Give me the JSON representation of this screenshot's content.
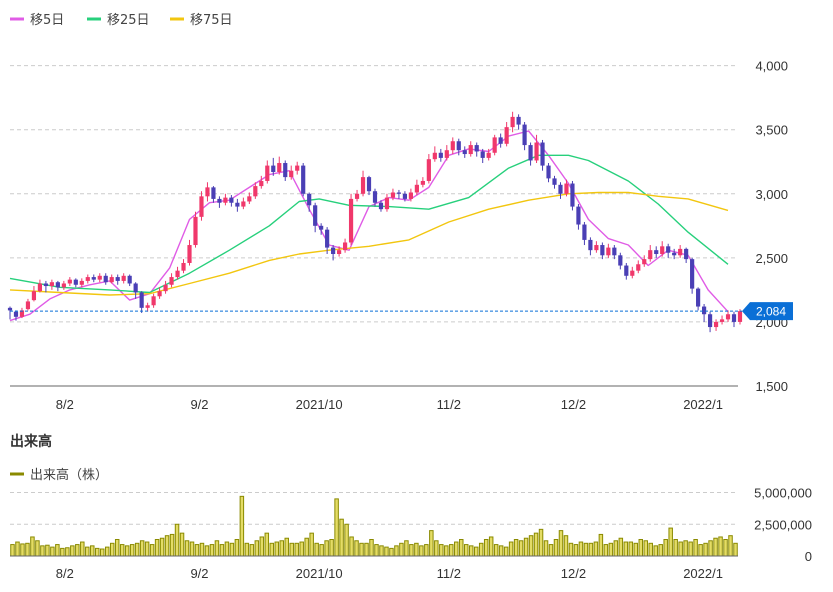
{
  "legend": {
    "ma5_label": "移5日",
    "ma25_label": "移25日",
    "ma75_label": "移75日",
    "volume_label": "出来高（株）"
  },
  "volume_section_title": "出来高",
  "colors": {
    "ma5": "#e05ce6",
    "ma25": "#27d07c",
    "ma75": "#f2c60f",
    "up": "#f0386b",
    "down": "#4a3fb5",
    "volume_fill": "#e4dc66",
    "volume_stroke": "#8a8a00",
    "price_tag": "#0a6fd6",
    "grid": "#cccccc",
    "axis": "#666666"
  },
  "chart_data": {
    "type": "candlestick",
    "price_axis": {
      "ylim": [
        1500,
        4200
      ],
      "ticks": [
        {
          "value": 4000,
          "label": "4,000"
        },
        {
          "value": 3500,
          "label": "3,500"
        },
        {
          "value": 3000,
          "label": "3,000"
        },
        {
          "value": 2500,
          "label": "2,500"
        },
        {
          "value": 2000,
          "label": "2,000"
        },
        {
          "value": 1500,
          "label": "1,500"
        }
      ]
    },
    "x_axis": {
      "range": [
        0,
        146
      ],
      "ticks": [
        {
          "value": 11,
          "label": "8/2"
        },
        {
          "value": 38,
          "label": "9/2"
        },
        {
          "value": 62,
          "label": "2021/10"
        },
        {
          "value": 88,
          "label": "11/2"
        },
        {
          "value": 113,
          "label": "12/2"
        },
        {
          "value": 139,
          "label": "2022/1"
        }
      ]
    },
    "current_price": {
      "value": 2084,
      "label": "2,084"
    },
    "series": [
      {
        "name": "移5日",
        "type": "line",
        "color_key": "ma5",
        "points": [
          [
            0,
            2010
          ],
          [
            4,
            2060
          ],
          [
            8,
            2180
          ],
          [
            12,
            2250
          ],
          [
            16,
            2290
          ],
          [
            20,
            2320
          ],
          [
            24,
            2170
          ],
          [
            28,
            2220
          ],
          [
            32,
            2420
          ],
          [
            36,
            2800
          ],
          [
            40,
            2930
          ],
          [
            44,
            2950
          ],
          [
            48,
            3050
          ],
          [
            52,
            3150
          ],
          [
            56,
            3180
          ],
          [
            60,
            2880
          ],
          [
            64,
            2600
          ],
          [
            68,
            2560
          ],
          [
            72,
            2900
          ],
          [
            76,
            2970
          ],
          [
            80,
            2950
          ],
          [
            84,
            3050
          ],
          [
            88,
            3300
          ],
          [
            92,
            3350
          ],
          [
            96,
            3330
          ],
          [
            100,
            3450
          ],
          [
            104,
            3490
          ],
          [
            108,
            3300
          ],
          [
            112,
            3080
          ],
          [
            116,
            2800
          ],
          [
            120,
            2650
          ],
          [
            124,
            2600
          ],
          [
            128,
            2440
          ],
          [
            132,
            2560
          ],
          [
            136,
            2520
          ],
          [
            140,
            2250
          ],
          [
            144,
            2080
          ]
        ]
      },
      {
        "name": "移25日",
        "type": "line",
        "color_key": "ma25",
        "points": [
          [
            0,
            2340
          ],
          [
            10,
            2270
          ],
          [
            20,
            2250
          ],
          [
            28,
            2230
          ],
          [
            36,
            2380
          ],
          [
            44,
            2560
          ],
          [
            52,
            2750
          ],
          [
            58,
            2940
          ],
          [
            62,
            2960
          ],
          [
            68,
            2910
          ],
          [
            76,
            2900
          ],
          [
            84,
            2880
          ],
          [
            92,
            2970
          ],
          [
            100,
            3200
          ],
          [
            106,
            3300
          ],
          [
            112,
            3300
          ],
          [
            116,
            3260
          ],
          [
            124,
            3100
          ],
          [
            130,
            2920
          ],
          [
            136,
            2700
          ],
          [
            144,
            2450
          ]
        ]
      },
      {
        "name": "移75日",
        "type": "line",
        "color_key": "ma75",
        "points": [
          [
            0,
            2250
          ],
          [
            10,
            2230
          ],
          [
            20,
            2210
          ],
          [
            28,
            2220
          ],
          [
            36,
            2300
          ],
          [
            44,
            2380
          ],
          [
            52,
            2480
          ],
          [
            58,
            2530
          ],
          [
            64,
            2560
          ],
          [
            72,
            2590
          ],
          [
            80,
            2640
          ],
          [
            88,
            2780
          ],
          [
            96,
            2880
          ],
          [
            104,
            2950
          ],
          [
            112,
            3000
          ],
          [
            118,
            3010
          ],
          [
            124,
            3010
          ],
          [
            130,
            2980
          ],
          [
            136,
            2960
          ],
          [
            144,
            2870
          ]
        ]
      }
    ],
    "candles": [
      [
        0,
        2110,
        2090,
        2120,
        2020
      ],
      [
        1,
        2080,
        2040,
        2090,
        2010
      ],
      [
        2,
        2040,
        2090,
        2110,
        2030
      ],
      [
        3,
        2100,
        2160,
        2180,
        2090
      ],
      [
        4,
        2170,
        2240,
        2280,
        2160
      ],
      [
        5,
        2240,
        2300,
        2330,
        2230
      ],
      [
        6,
        2300,
        2280,
        2320,
        2230
      ],
      [
        7,
        2280,
        2310,
        2330,
        2250
      ],
      [
        8,
        2310,
        2270,
        2320,
        2240
      ],
      [
        9,
        2270,
        2300,
        2320,
        2250
      ],
      [
        10,
        2300,
        2330,
        2350,
        2280
      ],
      [
        11,
        2330,
        2290,
        2340,
        2270
      ],
      [
        12,
        2290,
        2320,
        2340,
        2270
      ],
      [
        13,
        2320,
        2350,
        2370,
        2300
      ],
      [
        14,
        2350,
        2330,
        2370,
        2310
      ],
      [
        15,
        2330,
        2360,
        2380,
        2310
      ],
      [
        16,
        2360,
        2310,
        2380,
        2290
      ],
      [
        17,
        2310,
        2350,
        2370,
        2300
      ],
      [
        18,
        2350,
        2320,
        2370,
        2290
      ],
      [
        19,
        2320,
        2360,
        2380,
        2300
      ],
      [
        20,
        2360,
        2300,
        2370,
        2280
      ],
      [
        21,
        2300,
        2230,
        2310,
        2180
      ],
      [
        22,
        2230,
        2110,
        2240,
        2070
      ],
      [
        23,
        2110,
        2130,
        2150,
        2080
      ],
      [
        24,
        2130,
        2200,
        2220,
        2110
      ],
      [
        25,
        2200,
        2240,
        2270,
        2180
      ],
      [
        26,
        2240,
        2290,
        2320,
        2220
      ],
      [
        27,
        2290,
        2350,
        2380,
        2270
      ],
      [
        28,
        2350,
        2400,
        2430,
        2330
      ],
      [
        29,
        2400,
        2460,
        2490,
        2380
      ],
      [
        30,
        2460,
        2600,
        2640,
        2440
      ],
      [
        31,
        2600,
        2820,
        2860,
        2580
      ],
      [
        32,
        2820,
        2980,
        3020,
        2790
      ],
      [
        33,
        2980,
        3050,
        3090,
        2940
      ],
      [
        34,
        3050,
        2960,
        3060,
        2930
      ],
      [
        35,
        2960,
        2930,
        2980,
        2890
      ],
      [
        36,
        2930,
        2970,
        3000,
        2910
      ],
      [
        37,
        2970,
        2930,
        2990,
        2900
      ],
      [
        38,
        2930,
        2900,
        2960,
        2860
      ],
      [
        39,
        2900,
        2940,
        2970,
        2880
      ],
      [
        40,
        2940,
        2980,
        3010,
        2920
      ],
      [
        41,
        2980,
        3060,
        3090,
        2960
      ],
      [
        42,
        3060,
        3100,
        3140,
        3040
      ],
      [
        43,
        3100,
        3220,
        3260,
        3080
      ],
      [
        44,
        3220,
        3170,
        3280,
        3140
      ],
      [
        45,
        3170,
        3240,
        3290,
        3150
      ],
      [
        46,
        3240,
        3130,
        3260,
        3100
      ],
      [
        47,
        3130,
        3180,
        3220,
        3110
      ],
      [
        48,
        3180,
        3220,
        3250,
        3150
      ],
      [
        49,
        3220,
        3000,
        3240,
        2980
      ],
      [
        50,
        3000,
        2910,
        3010,
        2860
      ],
      [
        51,
        2910,
        2750,
        2930,
        2700
      ],
      [
        52,
        2750,
        2720,
        2770,
        2680
      ],
      [
        53,
        2720,
        2580,
        2740,
        2530
      ],
      [
        54,
        2580,
        2530,
        2600,
        2480
      ],
      [
        55,
        2530,
        2560,
        2590,
        2510
      ],
      [
        56,
        2560,
        2620,
        2650,
        2540
      ],
      [
        57,
        2620,
        2960,
        3000,
        2600
      ],
      [
        58,
        2960,
        3000,
        3030,
        2940
      ],
      [
        59,
        3000,
        3130,
        3180,
        2980
      ],
      [
        60,
        3130,
        3020,
        3140,
        2990
      ],
      [
        61,
        3020,
        2930,
        3040,
        2900
      ],
      [
        62,
        2930,
        2880,
        2950,
        2860
      ],
      [
        63,
        2880,
        2970,
        3000,
        2860
      ],
      [
        64,
        2970,
        3010,
        3040,
        2950
      ],
      [
        65,
        3010,
        3000,
        3030,
        2960
      ],
      [
        66,
        3000,
        2960,
        3020,
        2940
      ],
      [
        67,
        2960,
        3010,
        3040,
        2940
      ],
      [
        68,
        3010,
        3070,
        3110,
        2990
      ],
      [
        69,
        3070,
        3100,
        3130,
        3050
      ],
      [
        70,
        3100,
        3270,
        3310,
        3080
      ],
      [
        71,
        3270,
        3320,
        3370,
        3250
      ],
      [
        72,
        3320,
        3280,
        3350,
        3250
      ],
      [
        73,
        3280,
        3340,
        3380,
        3260
      ],
      [
        74,
        3340,
        3410,
        3440,
        3310
      ],
      [
        75,
        3410,
        3340,
        3430,
        3300
      ],
      [
        76,
        3340,
        3310,
        3370,
        3280
      ],
      [
        77,
        3310,
        3380,
        3410,
        3290
      ],
      [
        78,
        3380,
        3330,
        3400,
        3290
      ],
      [
        79,
        3330,
        3280,
        3350,
        3240
      ],
      [
        80,
        3280,
        3320,
        3350,
        3260
      ],
      [
        81,
        3320,
        3440,
        3460,
        3300
      ],
      [
        82,
        3440,
        3390,
        3470,
        3360
      ],
      [
        83,
        3390,
        3520,
        3560,
        3370
      ],
      [
        84,
        3520,
        3600,
        3640,
        3480
      ],
      [
        85,
        3600,
        3540,
        3620,
        3500
      ],
      [
        86,
        3540,
        3380,
        3560,
        3340
      ],
      [
        87,
        3380,
        3260,
        3400,
        3220
      ],
      [
        88,
        3260,
        3400,
        3460,
        3240
      ],
      [
        89,
        3400,
        3220,
        3420,
        3180
      ],
      [
        90,
        3220,
        3120,
        3240,
        3090
      ],
      [
        91,
        3120,
        3070,
        3140,
        3040
      ],
      [
        92,
        3070,
        3000,
        3090,
        2960
      ],
      [
        93,
        3000,
        3080,
        3110,
        2980
      ],
      [
        94,
        3080,
        2900,
        3100,
        2870
      ],
      [
        95,
        2900,
        2760,
        2920,
        2720
      ],
      [
        96,
        2760,
        2640,
        2780,
        2600
      ],
      [
        97,
        2640,
        2560,
        2660,
        2520
      ],
      [
        98,
        2560,
        2600,
        2630,
        2540
      ],
      [
        99,
        2600,
        2520,
        2620,
        2490
      ],
      [
        100,
        2520,
        2580,
        2610,
        2500
      ],
      [
        101,
        2580,
        2520,
        2600,
        2490
      ],
      [
        102,
        2520,
        2440,
        2540,
        2410
      ],
      [
        103,
        2440,
        2360,
        2460,
        2330
      ],
      [
        104,
        2360,
        2400,
        2430,
        2340
      ],
      [
        105,
        2400,
        2450,
        2480,
        2380
      ],
      [
        106,
        2450,
        2490,
        2520,
        2430
      ],
      [
        107,
        2490,
        2560,
        2600,
        2470
      ],
      [
        108,
        2560,
        2530,
        2590,
        2500
      ],
      [
        109,
        2530,
        2590,
        2630,
        2510
      ],
      [
        110,
        2590,
        2540,
        2610,
        2500
      ],
      [
        111,
        2540,
        2520,
        2570,
        2490
      ],
      [
        112,
        2520,
        2570,
        2600,
        2500
      ],
      [
        113,
        2570,
        2490,
        2580,
        2460
      ],
      [
        114,
        2490,
        2260,
        2500,
        2220
      ],
      [
        115,
        2260,
        2120,
        2270,
        2090
      ],
      [
        116,
        2120,
        2060,
        2140,
        2000
      ],
      [
        117,
        2060,
        1960,
        2080,
        1920
      ],
      [
        118,
        1960,
        2000,
        2020,
        1930
      ],
      [
        119,
        2000,
        2020,
        2050,
        1980
      ],
      [
        120,
        2020,
        2060,
        2090,
        2000
      ],
      [
        121,
        2060,
        2000,
        2080,
        1960
      ],
      [
        122,
        2000,
        2084,
        2100,
        1980
      ]
    ],
    "candle_x_scale": 1.2,
    "volume": {
      "title": "出来高",
      "ylim": [
        0,
        5200000
      ],
      "ticks": [
        {
          "value": 5000000,
          "label": "5,000,000"
        },
        {
          "value": 2500000,
          "label": "2,500,000"
        },
        {
          "value": 0,
          "label": "0"
        }
      ],
      "values": [
        900000,
        1100000,
        950000,
        1000000,
        1500000,
        1200000,
        800000,
        850000,
        700000,
        900000,
        600000,
        650000,
        800000,
        900000,
        1100000,
        700000,
        800000,
        600000,
        550000,
        700000,
        1000000,
        1300000,
        900000,
        800000,
        900000,
        1000000,
        1200000,
        1100000,
        900000,
        1300000,
        1400000,
        1600000,
        1700000,
        2500000,
        1800000,
        1200000,
        1100000,
        900000,
        1000000,
        800000,
        900000,
        1200000,
        900000,
        1100000,
        1000000,
        1300000,
        4700000,
        1000000,
        900000,
        1200000,
        1500000,
        1800000,
        1000000,
        1100000,
        1200000,
        1400000,
        1000000,
        1000000,
        1100000,
        1400000,
        1800000,
        1000000,
        900000,
        1200000,
        1300000,
        4500000,
        2900000,
        2500000,
        1500000,
        1200000,
        1000000,
        1000000,
        1300000,
        900000,
        800000,
        700000,
        600000,
        800000,
        1000000,
        1200000,
        900000,
        1000000,
        800000,
        900000,
        2000000,
        1200000,
        900000,
        800000,
        900000,
        1100000,
        1300000,
        900000,
        800000,
        700000,
        1000000,
        1300000,
        1500000,
        900000,
        800000,
        700000,
        1100000,
        1300000,
        1200000,
        1400000,
        1600000,
        1800000,
        2100000,
        1200000,
        900000,
        1300000,
        2000000,
        1600000,
        1000000,
        900000,
        1100000,
        1000000,
        1000000,
        1100000,
        1700000,
        900000,
        1000000,
        1200000,
        1400000,
        1100000,
        1100000,
        1000000,
        1300000,
        1200000,
        1000000,
        800000,
        900000,
        1300000,
        2200000,
        1300000,
        1100000,
        1200000,
        1100000,
        1300000,
        900000,
        1000000,
        1200000,
        1400000,
        1500000,
        1300000,
        1600000,
        1000000
      ]
    }
  }
}
